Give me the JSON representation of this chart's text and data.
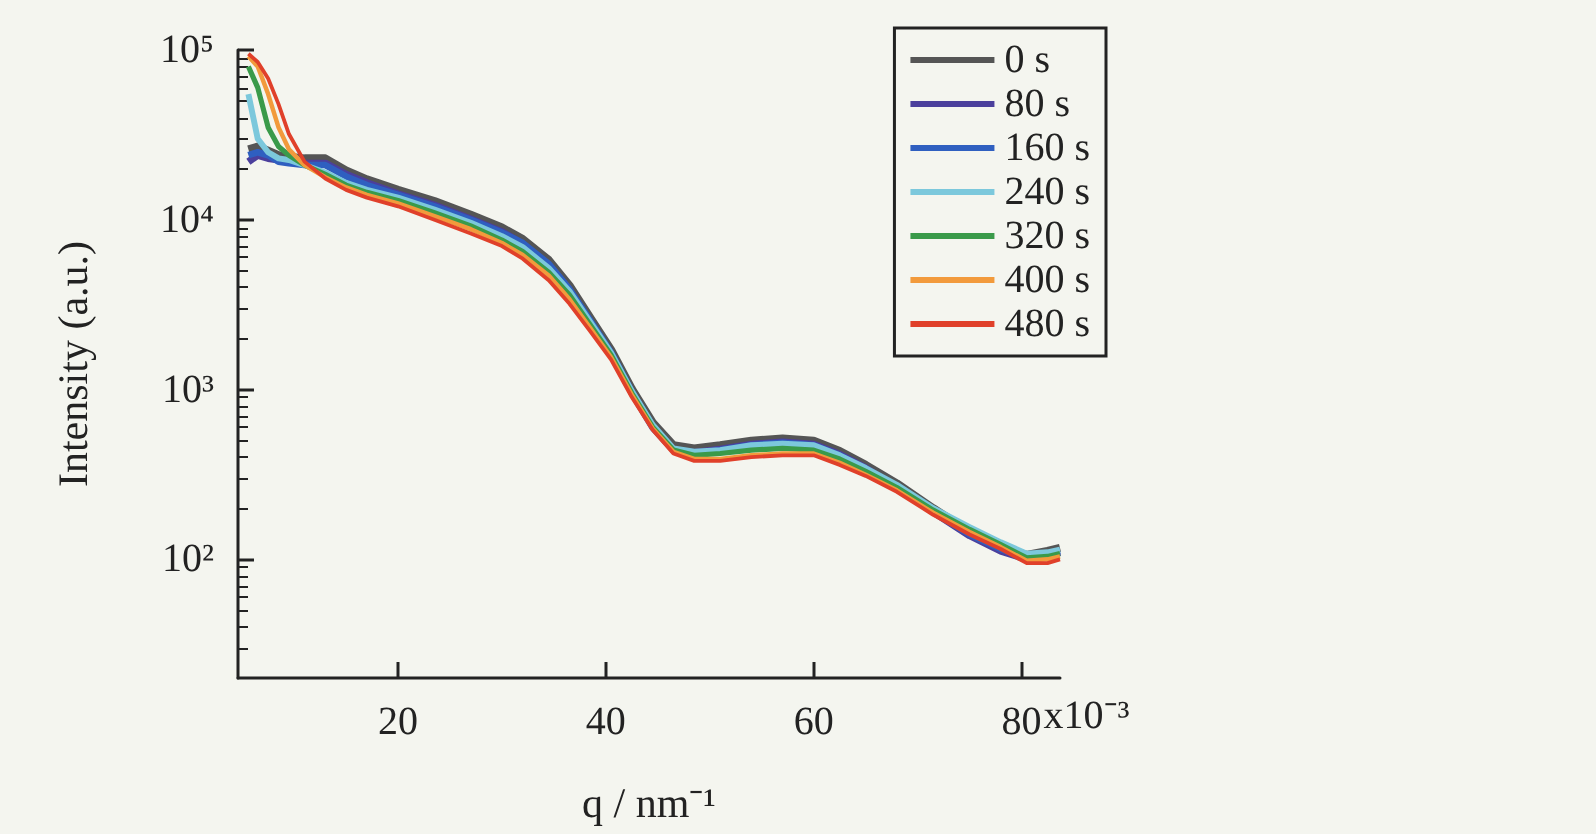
{
  "chart_data": {
    "type": "line",
    "xlabel": "q / nm⁻¹",
    "ylabel": "Intensity (a.u.)",
    "x": [
      5.6,
      6.5,
      7.5,
      8.5,
      9.5,
      11,
      13,
      15,
      17,
      20,
      23.5,
      27,
      30,
      32,
      34.5,
      36.5,
      38.5,
      40.5,
      42.5,
      44.5,
      46.5,
      48.5,
      51,
      54,
      57,
      60,
      62.5,
      65,
      68,
      71.5,
      75,
      78,
      80.5,
      82.5,
      83.7
    ],
    "series": [
      {
        "name": "0 s",
        "color": "#555555",
        "values": [
          26000,
          27000,
          25500,
          24000,
          23500,
          23000,
          23000,
          19500,
          17300,
          15000,
          12900,
          10700,
          9000,
          7700,
          5800,
          4100,
          2650,
          1720,
          1010,
          640,
          470,
          450,
          470,
          500,
          515,
          500,
          435,
          360,
          280,
          200,
          146,
          119,
          106,
          112,
          117
        ]
      },
      {
        "name": "80 s",
        "color": "#4b3f9c",
        "values": [
          22000,
          24000,
          23000,
          22500,
          22000,
          21500,
          21500,
          18500,
          16500,
          14200,
          12200,
          10100,
          8500,
          7200,
          5400,
          3850,
          2500,
          1630,
          960,
          600,
          440,
          425,
          445,
          475,
          490,
          475,
          415,
          345,
          265,
          190,
          138,
          112,
          100,
          105,
          110
        ]
      },
      {
        "name": "160 s",
        "color": "#2f5fc0",
        "values": [
          24000,
          25000,
          24000,
          22000,
          21500,
          21000,
          21000,
          18000,
          16000,
          14000,
          12000,
          10000,
          8400,
          7300,
          5500,
          3900,
          2550,
          1650,
          970,
          610,
          440,
          420,
          440,
          470,
          485,
          470,
          410,
          340,
          265,
          190,
          140,
          115,
          102,
          108,
          112
        ]
      },
      {
        "name": "240 s",
        "color": "#7cc8dc",
        "values": [
          55000,
          30000,
          25000,
          23000,
          22500,
          21000,
          19000,
          16500,
          15000,
          13500,
          11500,
          9600,
          8000,
          6900,
          5200,
          3800,
          2500,
          1650,
          980,
          620,
          450,
          430,
          440,
          470,
          480,
          470,
          410,
          345,
          275,
          200,
          155,
          126,
          108,
          110,
          114
        ]
      },
      {
        "name": "320 s",
        "color": "#3a9a4a",
        "values": [
          80000,
          60000,
          35000,
          27000,
          24000,
          21000,
          18500,
          16000,
          14500,
          13000,
          11000,
          9200,
          7600,
          6500,
          4900,
          3600,
          2400,
          1600,
          950,
          600,
          440,
          410,
          420,
          440,
          450,
          440,
          390,
          330,
          265,
          195,
          150,
          122,
          102,
          104,
          108
        ]
      },
      {
        "name": "400 s",
        "color": "#f29a3c",
        "values": [
          92000,
          80000,
          55000,
          35000,
          26000,
          21000,
          17800,
          15500,
          14000,
          12500,
          10500,
          8800,
          7300,
          6200,
          4700,
          3400,
          2300,
          1550,
          930,
          590,
          430,
          390,
          390,
          410,
          420,
          420,
          370,
          315,
          255,
          188,
          145,
          118,
          98,
          100,
          104
        ]
      },
      {
        "name": "480 s",
        "color": "#e0402a",
        "values": [
          95000,
          85000,
          68000,
          48000,
          32000,
          22000,
          17500,
          15000,
          13500,
          12000,
          10000,
          8300,
          7000,
          5900,
          4400,
          3200,
          2200,
          1500,
          900,
          580,
          420,
          380,
          380,
          400,
          410,
          410,
          360,
          310,
          250,
          183,
          140,
          115,
          95,
          95,
          100
        ]
      }
    ],
    "xlim": [
      4.6,
      83.7
    ],
    "xticks": [
      20,
      40,
      60,
      80
    ],
    "annotations": [
      "x10⁻³"
    ],
    "ylim": [
      20,
      100000
    ],
    "yticks": [
      {
        "value": 100,
        "label": "10²"
      },
      {
        "value": 1000,
        "label": "10³"
      },
      {
        "value": 10000,
        "label": "10⁴"
      },
      {
        "value": 100000,
        "label": "10⁵"
      }
    ],
    "log": "y",
    "grid": false,
    "legend": "top right",
    "marker": "none",
    "line_style": "solid"
  }
}
